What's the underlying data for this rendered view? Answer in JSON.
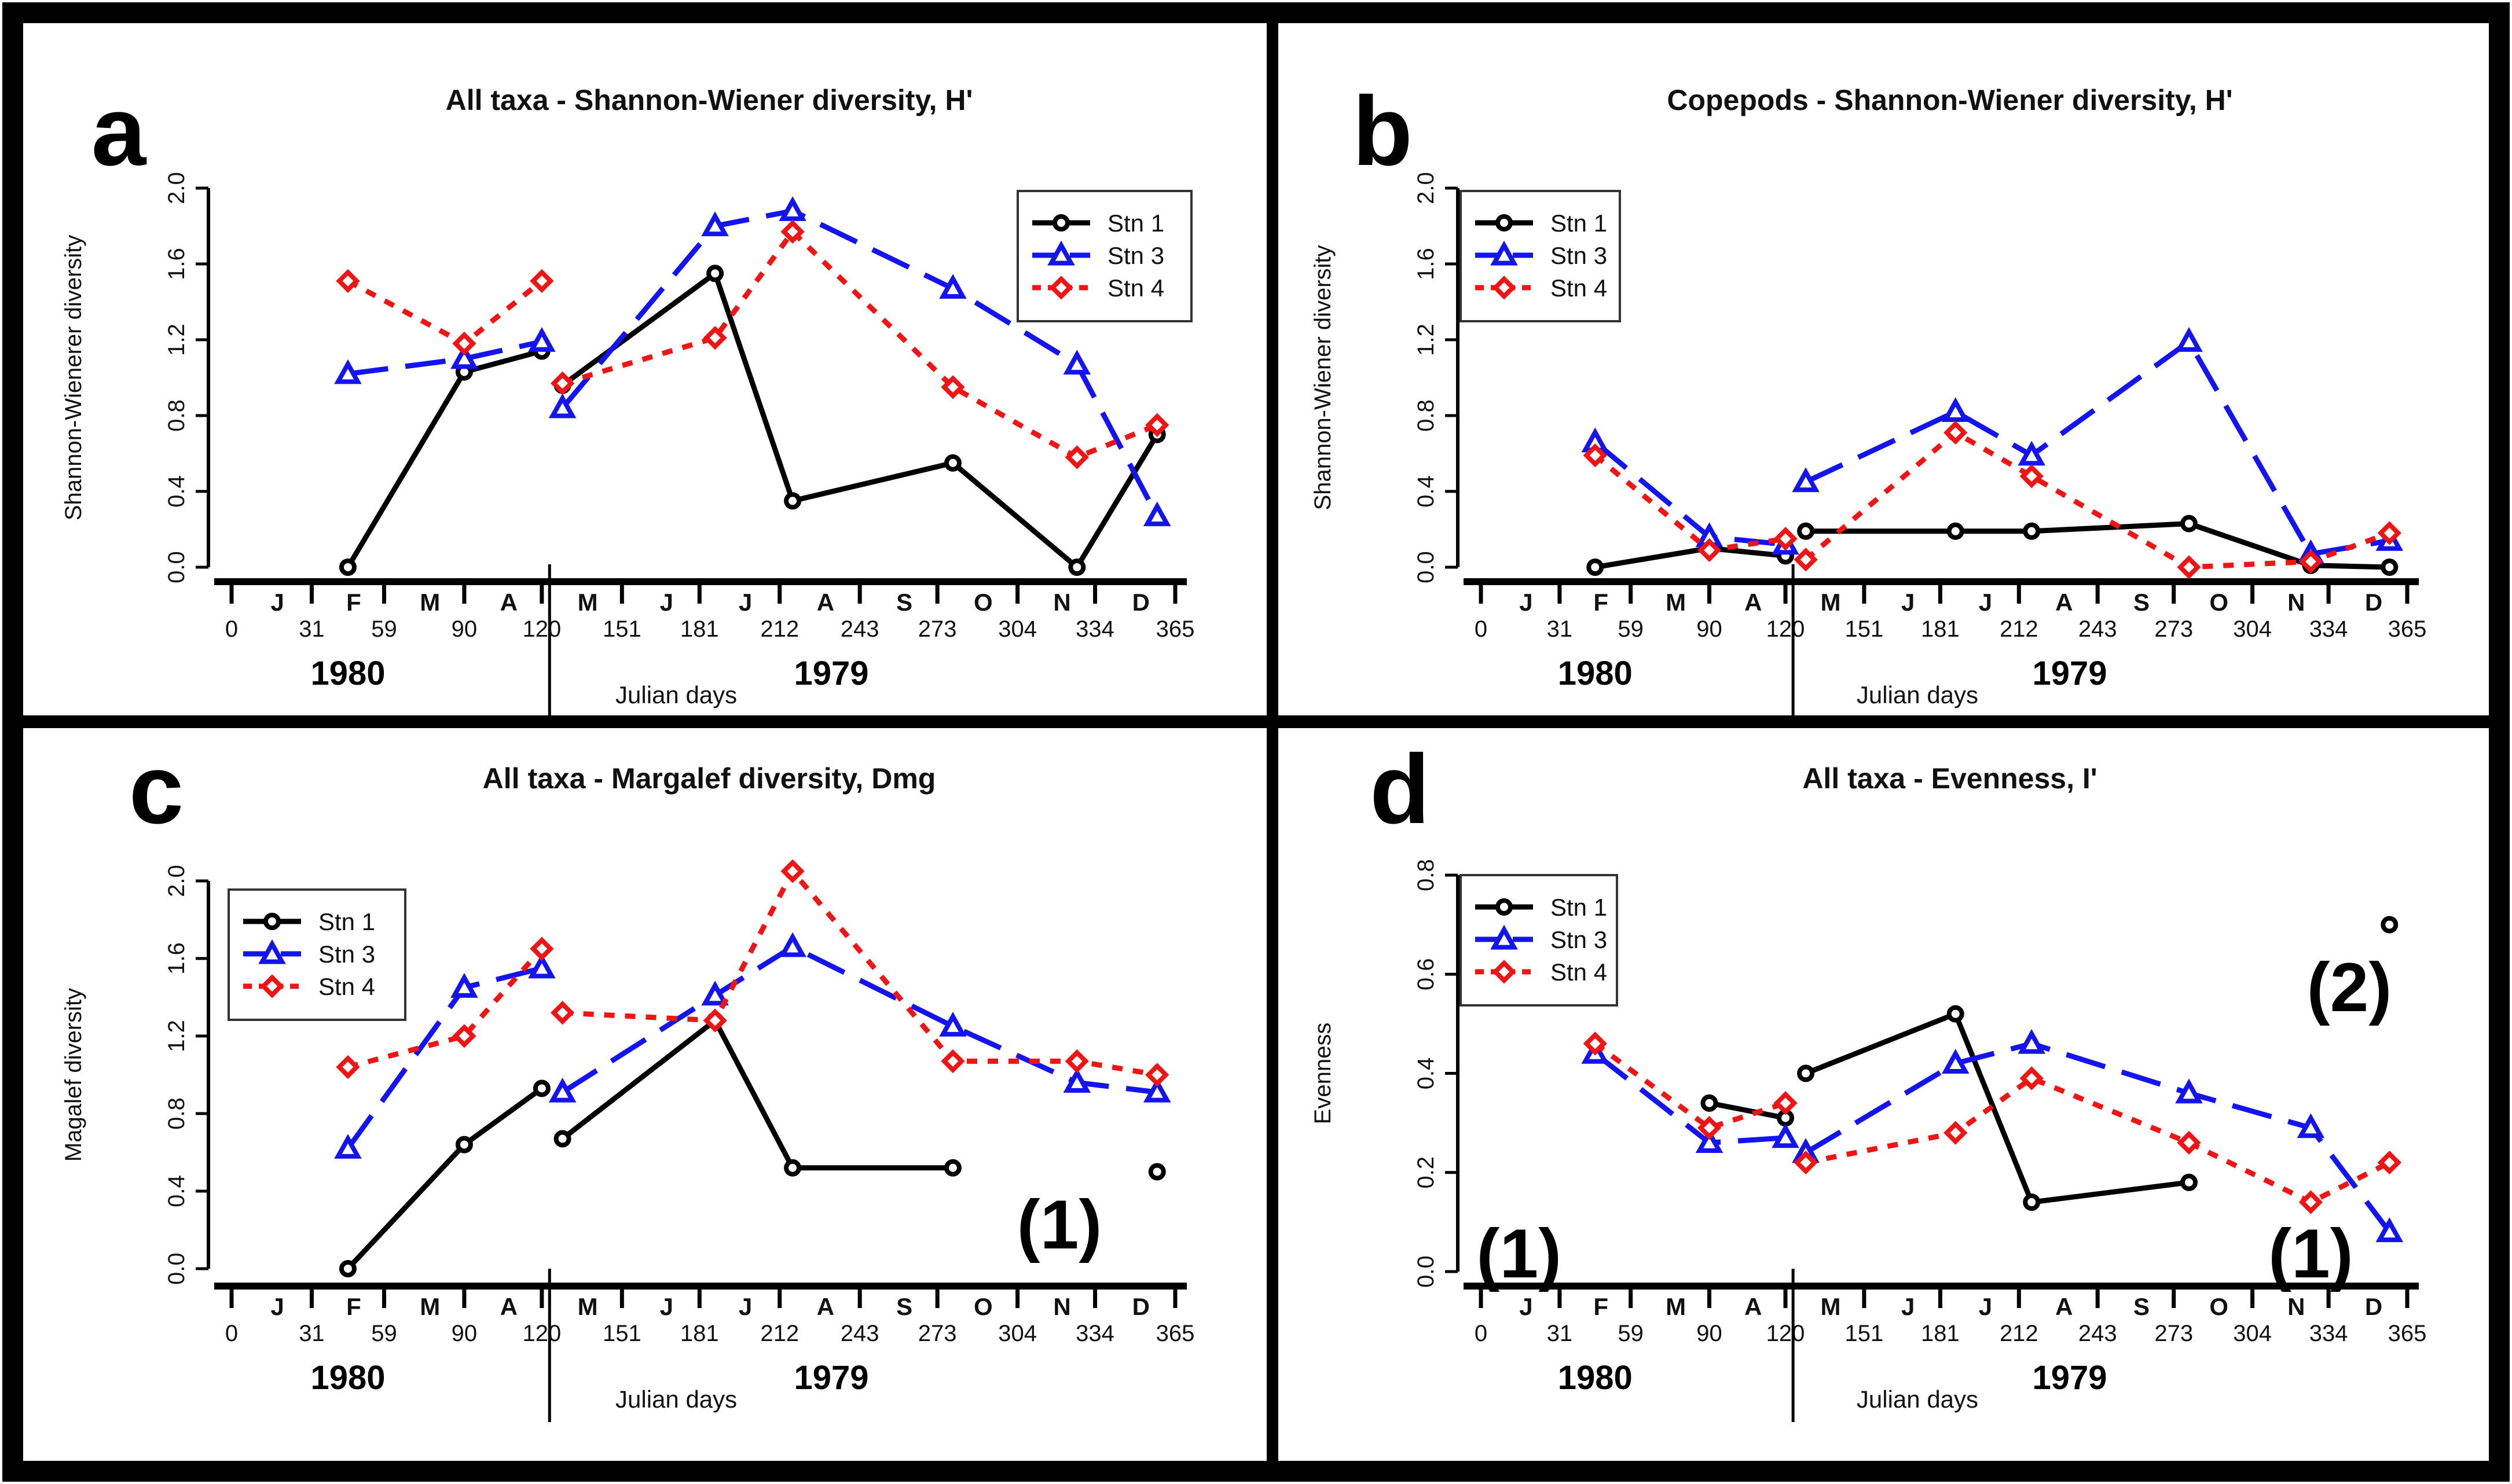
{
  "figure": {
    "colors": {
      "stn1": "#000000",
      "stn3": "#1414f0",
      "stn4": "#f01414"
    },
    "julian_ticks": [
      0,
      31,
      59,
      90,
      120,
      151,
      181,
      212,
      243,
      273,
      304,
      334,
      365
    ],
    "month_labels": [
      "J",
      "F",
      "M",
      "A",
      "M",
      "J",
      "J",
      "A",
      "S",
      "O",
      "N",
      "D"
    ],
    "xlabel": "Julian days",
    "year_left": "1980",
    "year_right": "1979",
    "legend": [
      "Stn 1",
      "Stn 3",
      "Stn 4"
    ]
  },
  "chart_data": [
    {
      "letter": "a",
      "type": "line",
      "title": "All taxa - Shannon-Wiener diversity, H'",
      "ylabel": "Shannon-Wienerer diversity",
      "ylim": [
        0,
        2.0
      ],
      "yticks": [
        "0.0",
        "0.4",
        "0.8",
        "1.2",
        "1.6",
        "2.0"
      ],
      "legend_position": "top-right",
      "annotations": [],
      "series": [
        {
          "name": "Stn 1",
          "segments": [
            [
              [
                45,
                0.0
              ],
              [
                90,
                1.03
              ],
              [
                120,
                1.14
              ]
            ],
            [
              [
                128,
                0.96
              ],
              [
                187,
                1.55
              ],
              [
                217,
                0.35
              ],
              [
                279,
                0.55
              ],
              [
                327,
                0.0
              ],
              [
                358,
                0.7
              ]
            ]
          ]
        },
        {
          "name": "Stn 3",
          "segments": [
            [
              [
                45,
                1.02
              ],
              [
                90,
                1.1
              ],
              [
                120,
                1.19
              ]
            ],
            [
              [
                128,
                0.84
              ],
              [
                187,
                1.8
              ],
              [
                217,
                1.88
              ],
              [
                279,
                1.47
              ],
              [
                327,
                1.07
              ],
              [
                358,
                0.27
              ]
            ]
          ]
        },
        {
          "name": "Stn 4",
          "segments": [
            [
              [
                45,
                1.51
              ],
              [
                90,
                1.18
              ],
              [
                120,
                1.51
              ]
            ],
            [
              [
                128,
                0.97
              ],
              [
                187,
                1.21
              ],
              [
                217,
                1.77
              ],
              [
                279,
                0.95
              ],
              [
                327,
                0.58
              ],
              [
                358,
                0.75
              ]
            ]
          ]
        }
      ]
    },
    {
      "letter": "b",
      "type": "line",
      "title": "Copepods - Shannon-Wiener diversity, H'",
      "ylabel": "Shannon-Wiener diversity",
      "ylim": [
        0,
        2.0
      ],
      "yticks": [
        "0.0",
        "0.4",
        "0.8",
        "1.2",
        "1.6",
        "2.0"
      ],
      "legend_position": "top-left",
      "annotations": [],
      "series": [
        {
          "name": "Stn 1",
          "segments": [
            [
              [
                45,
                0.0
              ],
              [
                90,
                0.1
              ],
              [
                120,
                0.06
              ]
            ],
            [
              [
                128,
                0.19
              ],
              [
                187,
                0.19
              ],
              [
                217,
                0.19
              ],
              [
                279,
                0.23
              ],
              [
                327,
                0.01
              ],
              [
                358,
                0.0
              ]
            ]
          ]
        },
        {
          "name": "Stn 3",
          "segments": [
            [
              [
                45,
                0.66
              ],
              [
                90,
                0.16
              ],
              [
                120,
                0.12
              ]
            ],
            [
              [
                128,
                0.45
              ],
              [
                187,
                0.82
              ],
              [
                217,
                0.59
              ],
              [
                279,
                1.19
              ],
              [
                327,
                0.07
              ],
              [
                358,
                0.14
              ]
            ]
          ]
        },
        {
          "name": "Stn 4",
          "segments": [
            [
              [
                45,
                0.59
              ],
              [
                90,
                0.09
              ],
              [
                120,
                0.15
              ]
            ],
            [
              [
                128,
                0.04
              ],
              [
                187,
                0.71
              ],
              [
                217,
                0.48
              ],
              [
                279,
                0.0
              ],
              [
                327,
                0.03
              ],
              [
                358,
                0.18
              ]
            ]
          ]
        }
      ]
    },
    {
      "letter": "c",
      "type": "line",
      "title": "All taxa - Margalef diversity, Dmg",
      "ylabel": "Magalef diversity",
      "ylim": [
        0,
        2.0
      ],
      "yticks": [
        "0.0",
        "0.4",
        "0.8",
        "1.2",
        "1.6",
        "2.0"
      ],
      "legend_position": "top-left",
      "annotations": [
        {
          "text": "(1)",
          "position": "lower-right"
        }
      ],
      "series": [
        {
          "name": "Stn 1",
          "segments": [
            [
              [
                45,
                0.0
              ],
              [
                90,
                0.64
              ],
              [
                120,
                0.93
              ]
            ],
            [
              [
                128,
                0.67
              ],
              [
                187,
                1.28
              ],
              [
                217,
                0.52
              ],
              [
                279,
                0.52
              ]
            ],
            [
              [
                358,
                0.5
              ]
            ]
          ]
        },
        {
          "name": "Stn 3",
          "segments": [
            [
              [
                45,
                0.62
              ],
              [
                90,
                1.45
              ],
              [
                120,
                1.55
              ]
            ],
            [
              [
                128,
                0.91
              ],
              [
                187,
                1.41
              ],
              [
                217,
                1.66
              ],
              [
                279,
                1.25
              ],
              [
                327,
                0.96
              ],
              [
                358,
                0.91
              ]
            ]
          ]
        },
        {
          "name": "Stn 4",
          "segments": [
            [
              [
                45,
                1.04
              ],
              [
                90,
                1.2
              ],
              [
                120,
                1.65
              ]
            ],
            [
              [
                128,
                1.32
              ],
              [
                187,
                1.28
              ],
              [
                217,
                2.05
              ],
              [
                279,
                1.07
              ],
              [
                327,
                1.07
              ],
              [
                358,
                1.0
              ]
            ]
          ]
        }
      ]
    },
    {
      "letter": "d",
      "type": "line",
      "title": "All taxa - Evenness, I'",
      "ylabel": "Evenness",
      "ylim": [
        0,
        0.8
      ],
      "yticks": [
        "0.0",
        "0.2",
        "0.4",
        "0.6",
        "0.8"
      ],
      "legend_position": "top-left",
      "annotations": [
        {
          "text": "(1)",
          "position": "bottom-left"
        },
        {
          "text": "(1)",
          "position": "bottom-right"
        },
        {
          "text": "(2)",
          "position": "top-right"
        }
      ],
      "series": [
        {
          "name": "Stn 1",
          "segments": [
            [
              [
                90,
                0.34
              ],
              [
                120,
                0.31
              ]
            ],
            [
              [
                128,
                0.4
              ],
              [
                187,
                0.52
              ],
              [
                217,
                0.14
              ],
              [
                279,
                0.18
              ]
            ],
            [
              [
                358,
                0.7
              ]
            ]
          ]
        },
        {
          "name": "Stn 3",
          "segments": [
            [
              [
                45,
                0.44
              ],
              [
                90,
                0.26
              ],
              [
                120,
                0.27
              ]
            ],
            [
              [
                128,
                0.24
              ],
              [
                187,
                0.42
              ],
              [
                217,
                0.46
              ],
              [
                279,
                0.36
              ],
              [
                327,
                0.29
              ],
              [
                358,
                0.08
              ]
            ]
          ]
        },
        {
          "name": "Stn 4",
          "segments": [
            [
              [
                45,
                0.46
              ],
              [
                90,
                0.29
              ],
              [
                120,
                0.34
              ]
            ],
            [
              [
                128,
                0.22
              ],
              [
                187,
                0.28
              ],
              [
                217,
                0.39
              ],
              [
                279,
                0.26
              ],
              [
                327,
                0.14
              ],
              [
                358,
                0.22
              ]
            ]
          ]
        }
      ]
    }
  ]
}
